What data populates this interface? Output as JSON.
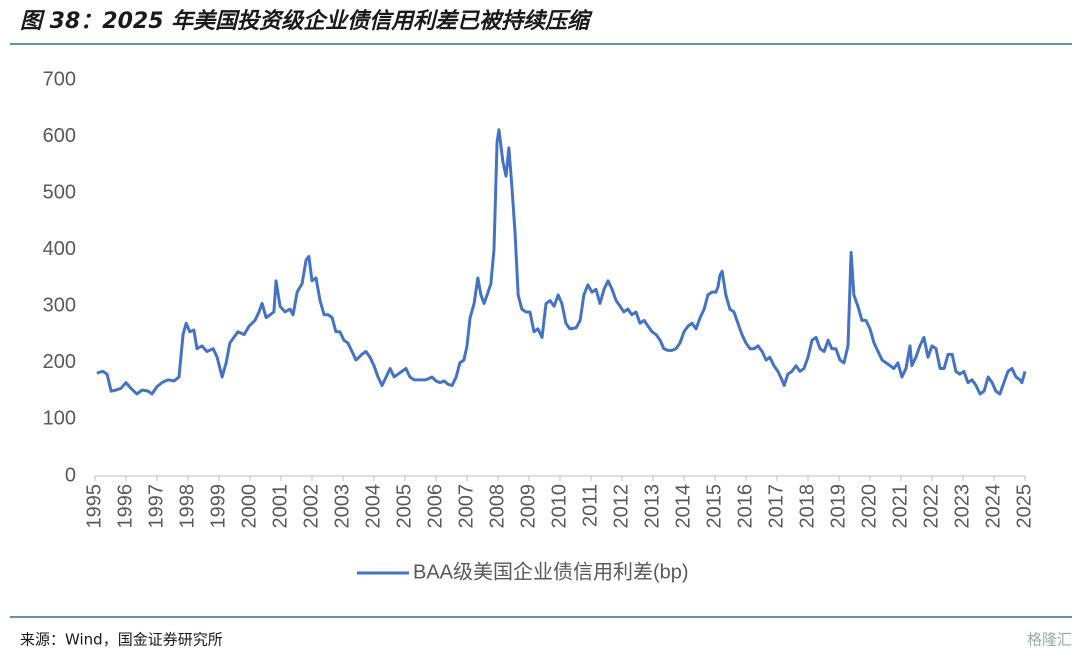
{
  "chart_data": {
    "type": "line",
    "title": "图 38：2025 年美国投资级企业债信用利差已被持续压缩",
    "source": "来源：Wind，国金证券研究所",
    "watermark": "格隆汇",
    "xlim": [
      1995,
      2025
    ],
    "xticks": [
      1995,
      1996,
      1997,
      1998,
      1999,
      2000,
      2001,
      2002,
      2003,
      2004,
      2005,
      2006,
      2007,
      2008,
      2009,
      2010,
      2011,
      2012,
      2013,
      2014,
      2015,
      2016,
      2017,
      2018,
      2019,
      2020,
      2021,
      2022,
      2023,
      2024,
      2025
    ],
    "ylim": [
      0,
      700
    ],
    "yticks": [
      0,
      100,
      200,
      300,
      400,
      500,
      600,
      700
    ],
    "grid": false,
    "legend": "bottom",
    "x": [
      1995.06,
      1995.26,
      1995.39,
      1995.52,
      1995.68,
      1995.84,
      1996.0,
      1996.16,
      1996.35,
      1996.52,
      1996.71,
      1996.84,
      1997.0,
      1997.16,
      1997.35,
      1997.55,
      1997.71,
      1997.84,
      1997.94,
      1998.06,
      1998.19,
      1998.29,
      1998.45,
      1998.61,
      1998.81,
      1998.94,
      1999.1,
      1999.23,
      1999.35,
      1999.48,
      1999.61,
      1999.81,
      1999.97,
      2000.16,
      2000.29,
      2000.39,
      2000.52,
      2000.65,
      2000.77,
      2000.84,
      2000.97,
      2001.13,
      2001.29,
      2001.39,
      2001.52,
      2001.68,
      2001.81,
      2001.9,
      2002.0,
      2002.13,
      2002.26,
      2002.39,
      2002.52,
      2002.65,
      2002.77,
      2002.9,
      2003.03,
      2003.16,
      2003.29,
      2003.42,
      2003.61,
      2003.74,
      2003.87,
      2004.0,
      2004.13,
      2004.26,
      2004.39,
      2004.52,
      2004.65,
      2004.77,
      2004.9,
      2005.03,
      2005.16,
      2005.29,
      2005.48,
      2005.68,
      2005.87,
      2006.0,
      2006.13,
      2006.26,
      2006.39,
      2006.52,
      2006.65,
      2006.77,
      2006.9,
      2007.0,
      2007.1,
      2007.23,
      2007.35,
      2007.45,
      2007.55,
      2007.68,
      2007.77,
      2007.87,
      2007.97,
      2008.03,
      2008.16,
      2008.26,
      2008.35,
      2008.45,
      2008.55,
      2008.65,
      2008.77,
      2008.9,
      2009.03,
      2009.16,
      2009.29,
      2009.42,
      2009.55,
      2009.68,
      2009.81,
      2009.94,
      2010.06,
      2010.19,
      2010.32,
      2010.52,
      2010.65,
      2010.77,
      2010.9,
      2011.03,
      2011.16,
      2011.29,
      2011.42,
      2011.55,
      2011.68,
      2011.81,
      2011.94,
      2012.06,
      2012.19,
      2012.32,
      2012.45,
      2012.58,
      2012.71,
      2012.84,
      2012.97,
      2013.1,
      2013.23,
      2013.35,
      2013.48,
      2013.61,
      2013.74,
      2013.87,
      2014.0,
      2014.13,
      2014.26,
      2014.39,
      2014.52,
      2014.65,
      2014.77,
      2014.9,
      2015.03,
      2015.1,
      2015.16,
      2015.23,
      2015.35,
      2015.48,
      2015.61,
      2015.74,
      2015.87,
      2016.0,
      2016.13,
      2016.26,
      2016.39,
      2016.52,
      2016.65,
      2016.77,
      2016.9,
      2017.03,
      2017.16,
      2017.23,
      2017.35,
      2017.48,
      2017.61,
      2017.74,
      2017.87,
      2018.0,
      2018.13,
      2018.26,
      2018.39,
      2018.52,
      2018.65,
      2018.77,
      2018.9,
      2019.03,
      2019.16,
      2019.29,
      2019.39,
      2019.48,
      2019.61,
      2019.74,
      2019.87,
      2020.0,
      2020.13,
      2020.26,
      2020.39,
      2020.52,
      2020.65,
      2020.77,
      2020.9,
      2021.03,
      2021.16,
      2021.29,
      2021.35,
      2021.48,
      2021.61,
      2021.74,
      2021.87,
      2022.0,
      2022.13,
      2022.26,
      2022.39,
      2022.52,
      2022.65,
      2022.77,
      2022.9,
      2023.03,
      2023.16,
      2023.29,
      2023.42,
      2023.55,
      2023.68,
      2023.81,
      2023.94,
      2024.06,
      2024.19,
      2024.32,
      2024.45,
      2024.58,
      2024.71,
      2024.84,
      2024.9,
      2025.0
    ],
    "series": [
      {
        "name": "BAA级美国企业债信用利差(bp)",
        "color": "#4472c4",
        "values": [
          182,
          185,
          180,
          150,
          152,
          155,
          165,
          155,
          145,
          152,
          150,
          145,
          158,
          165,
          170,
          168,
          175,
          250,
          270,
          255,
          258,
          225,
          230,
          220,
          225,
          210,
          175,
          200,
          235,
          245,
          255,
          250,
          265,
          275,
          290,
          305,
          280,
          285,
          290,
          345,
          300,
          290,
          295,
          285,
          325,
          340,
          382,
          388,
          345,
          350,
          310,
          285,
          285,
          280,
          255,
          255,
          240,
          235,
          220,
          205,
          215,
          220,
          210,
          195,
          175,
          160,
          175,
          190,
          175,
          180,
          185,
          190,
          175,
          170,
          170,
          170,
          175,
          168,
          165,
          168,
          162,
          160,
          175,
          200,
          205,
          230,
          280,
          305,
          350,
          320,
          305,
          325,
          340,
          400,
          590,
          612,
          555,
          530,
          580,
          510,
          430,
          320,
          295,
          290,
          290,
          255,
          260,
          245,
          305,
          310,
          300,
          320,
          305,
          270,
          260,
          262,
          275,
          320,
          338,
          325,
          330,
          305,
          330,
          345,
          330,
          310,
          300,
          290,
          295,
          285,
          290,
          270,
          275,
          265,
          255,
          250,
          240,
          225,
          222,
          222,
          225,
          235,
          255,
          265,
          270,
          260,
          280,
          295,
          320,
          325,
          325,
          335,
          355,
          362,
          320,
          295,
          290,
          270,
          250,
          235,
          225,
          225,
          230,
          220,
          205,
          210,
          195,
          185,
          170,
          160,
          180,
          185,
          195,
          185,
          190,
          210,
          240,
          245,
          225,
          220,
          240,
          225,
          225,
          205,
          200,
          230,
          395,
          320,
          300,
          275,
          275,
          260,
          235,
          220,
          205,
          200,
          195,
          190,
          200,
          175,
          190,
          230,
          195,
          210,
          230,
          245,
          210,
          230,
          225,
          190,
          190,
          215,
          215,
          185,
          180,
          185,
          165,
          170,
          160,
          145,
          150,
          175,
          165,
          150,
          145,
          165,
          185,
          190,
          175,
          170,
          165,
          185
        ]
      }
    ]
  }
}
